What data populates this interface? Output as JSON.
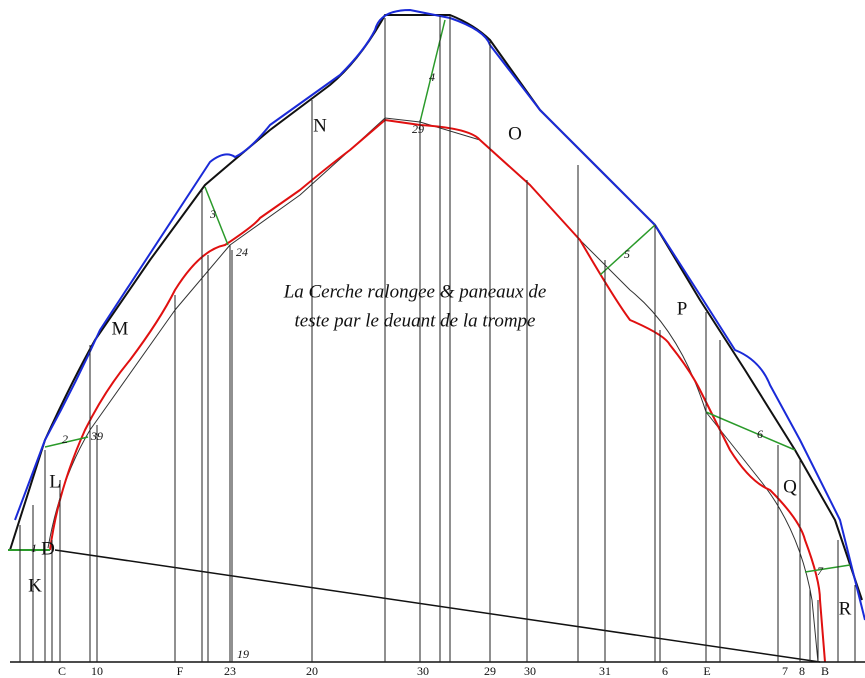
{
  "title": {
    "lines": [
      "La Cerche ralongee & paneaux de",
      "teste par le deuant de la trompe"
    ]
  },
  "region_labels": [
    "N",
    "O",
    "M",
    "P",
    "L",
    "Q",
    "K",
    "R",
    "D"
  ],
  "point_labels": [
    "4",
    "29",
    "3",
    "24",
    "5",
    "2",
    "39",
    "6",
    "7",
    "1",
    "19"
  ],
  "bottom_labels": [
    "C",
    "10",
    "F",
    "23",
    "20",
    "30",
    "29",
    "30",
    "31",
    "6",
    "E",
    "7",
    "8",
    "B"
  ]
}
